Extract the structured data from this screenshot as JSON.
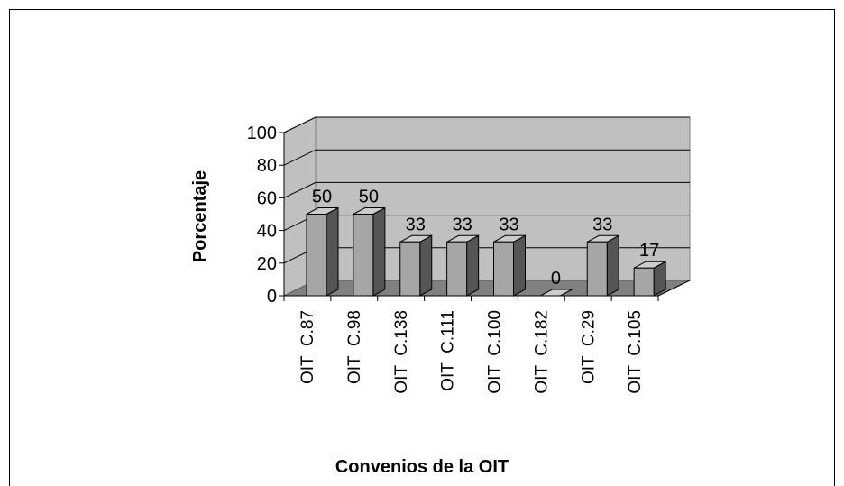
{
  "chart_data": {
    "type": "bar3d",
    "x_label": "Convenios de la OIT",
    "y_label": "Porcentaje",
    "categories": [
      "OIT  C.87",
      "OIT  C.98",
      "OIT  C.138",
      "OIT  C.111",
      "OIT  C.100",
      "OIT  C.182",
      "OIT  C.29",
      "OIT  C.105"
    ],
    "values": [
      50,
      50,
      33,
      33,
      33,
      0,
      33,
      17
    ],
    "color": "#a6a6a6",
    "ylim": [
      0,
      100
    ],
    "yticks": [
      0,
      20,
      40,
      60,
      80,
      100
    ],
    "grid": true
  }
}
